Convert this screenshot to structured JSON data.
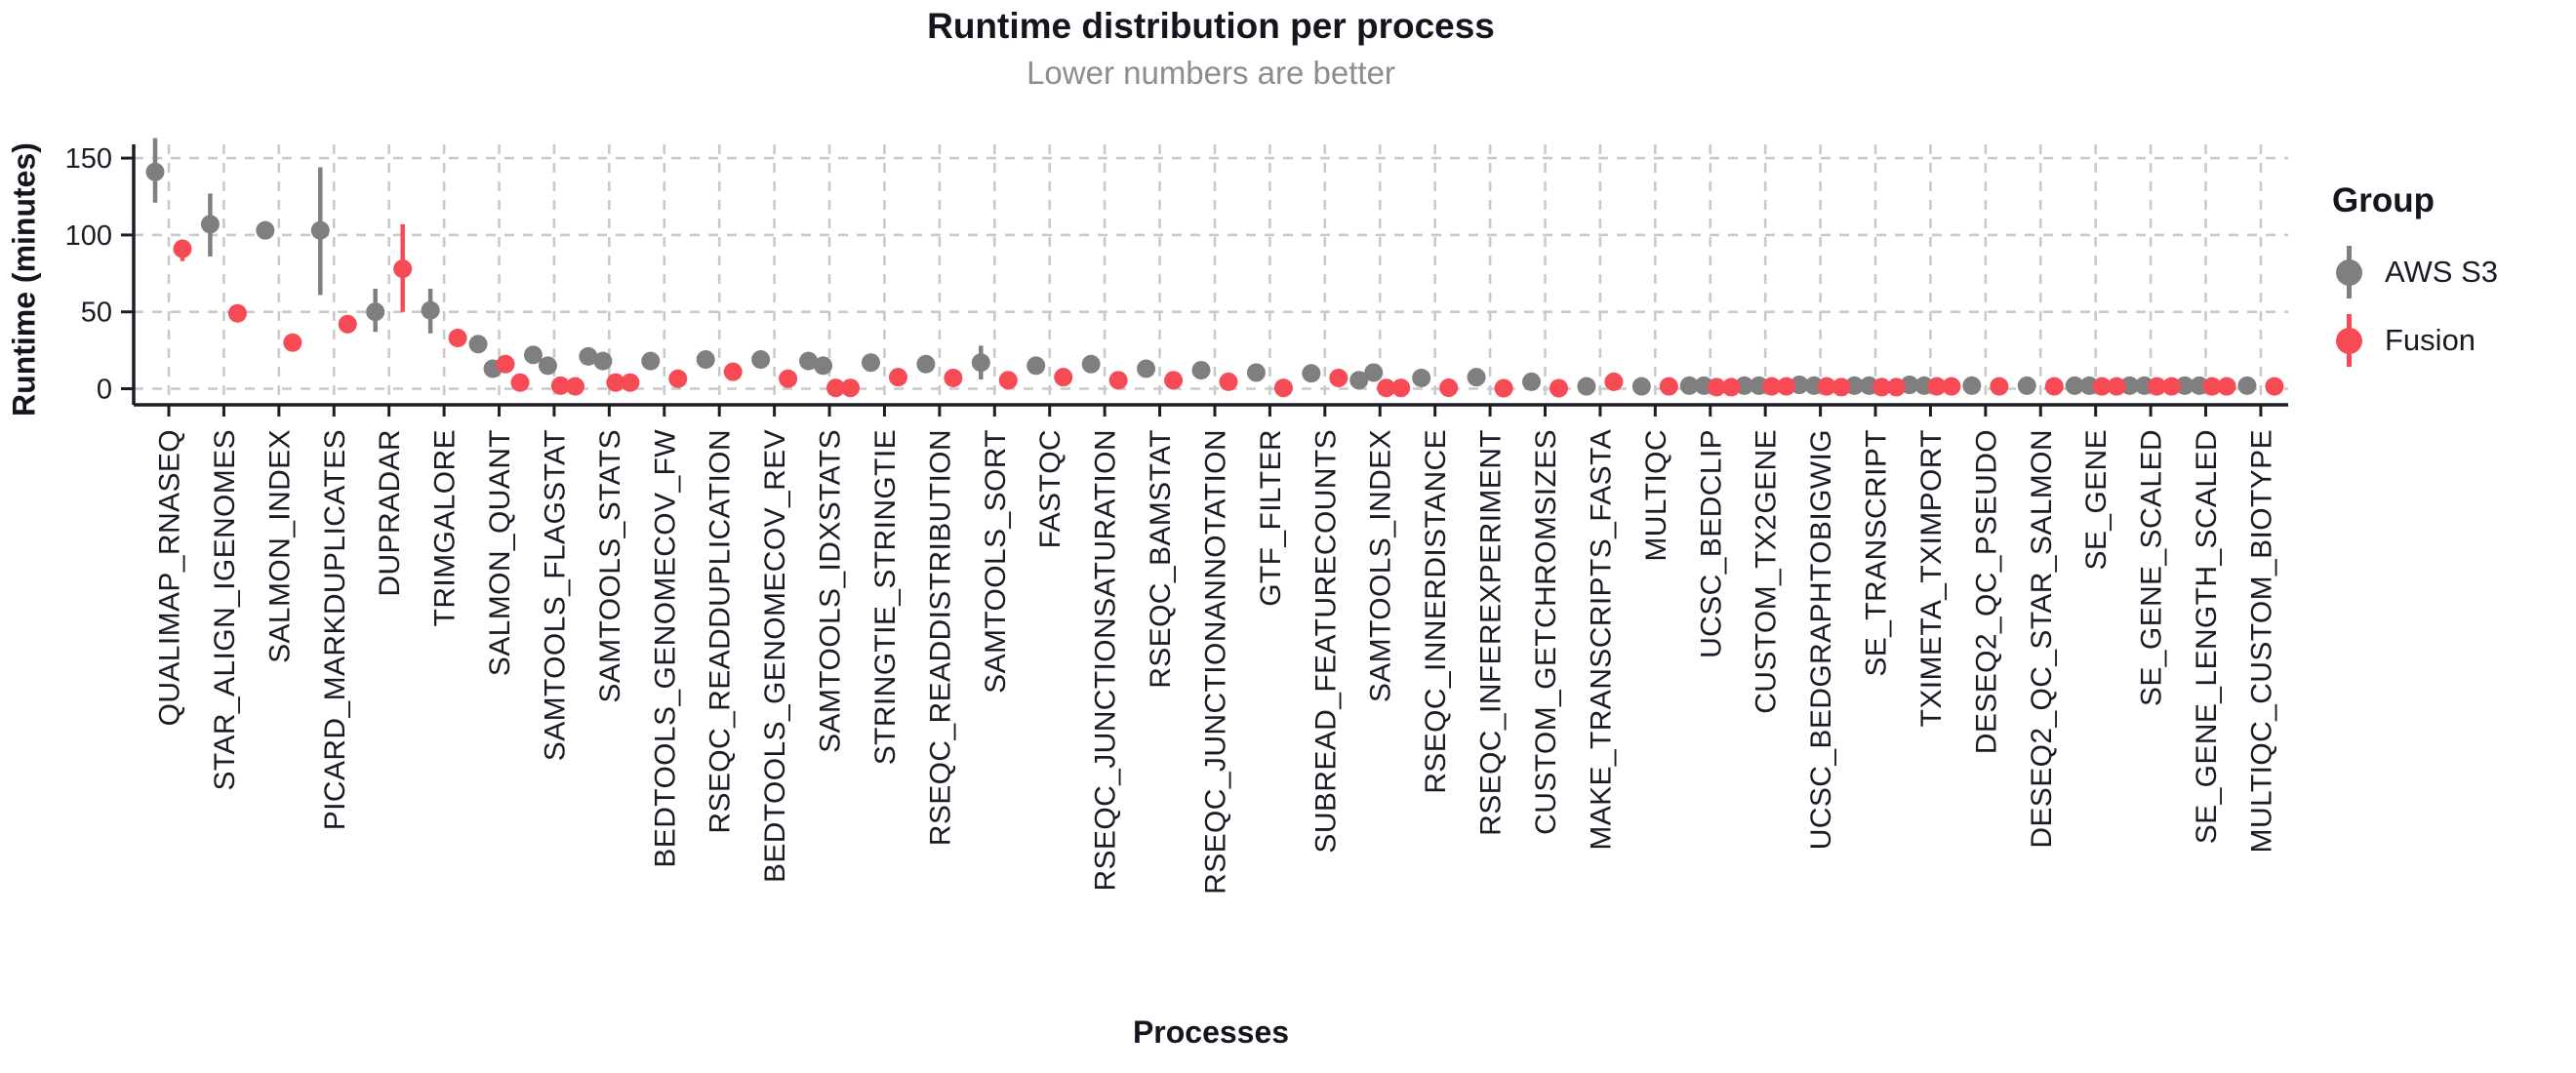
{
  "chart_data": {
    "type": "pointrange",
    "title": "Runtime distribution per process",
    "subtitle": "Lower numbers are better",
    "xlabel": "Processes",
    "ylabel": "Runtime (minutes)",
    "yticks": [
      0,
      50,
      100,
      150
    ],
    "ylim": [
      0,
      168
    ],
    "grid": "dashed",
    "legend_position": "right",
    "legend_title": "Group",
    "categories": [
      "QUALIMAP_RNASEQ",
      "STAR_ALIGN_IGENOMES",
      "SALMON_INDEX",
      "PICARD_MARKDUPLICATES",
      "DUPRADAR",
      "TRIMGALORE",
      "SALMON_QUANT",
      "SAMTOOLS_FLAGSTAT",
      "SAMTOOLS_STATS",
      "BEDTOOLS_GENOMECOV_FW",
      "RSEQC_READDUPLICATION",
      "BEDTOOLS_GENOMECOV_REV",
      "SAMTOOLS_IDXSTATS",
      "STRINGTIE_STRINGTIE",
      "RSEQC_READDISTRIBUTION",
      "SAMTOOLS_SORT",
      "FASTQC",
      "RSEQC_JUNCTIONSATURATION",
      "RSEQC_BAMSTAT",
      "RSEQC_JUNCTIONANNOTATION",
      "GTF_FILTER",
      "SUBREAD_FEATURECOUNTS",
      "SAMTOOLS_INDEX",
      "RSEQC_INNERDISTANCE",
      "RSEQC_INFEREXPERIMENT",
      "CUSTOM_GETCHROMSIZES",
      "MAKE_TRANSCRIPTS_FASTA",
      "MULTIQC",
      "UCSC_BEDCLIP",
      "CUSTOM_TX2GENE",
      "UCSC_BEDGRAPHTOBIGWIG",
      "SE_TRANSCRIPT",
      "TXIMETA_TXIMPORT",
      "DESEQ2_QC_PSEUDO",
      "DESEQ2_QC_STAR_SALMON",
      "SE_GENE",
      "SE_GENE_SCALED",
      "SE_GENE_LENGTH_SCALED",
      "MULTIQC_CUSTOM_BIOTYPE"
    ],
    "series": [
      {
        "name": "AWS S3",
        "color": "#7f7f7f",
        "data": [
          {
            "points": [
              141
            ],
            "range": [
              121,
              163
            ]
          },
          {
            "points": [
              107
            ],
            "range": [
              86,
              127
            ]
          },
          {
            "points": [
              103
            ]
          },
          {
            "points": [
              103
            ],
            "range": [
              61,
              144
            ]
          },
          {
            "points": [
              50
            ],
            "range": [
              37,
              65
            ]
          },
          {
            "points": [
              51
            ],
            "range": [
              36,
              65
            ]
          },
          {
            "points": [
              29,
              13
            ]
          },
          {
            "points": [
              22,
              15
            ]
          },
          {
            "points": [
              21,
              18
            ]
          },
          {
            "points": [
              18
            ]
          },
          {
            "points": [
              19
            ]
          },
          {
            "points": [
              19
            ]
          },
          {
            "points": [
              18,
              15
            ]
          },
          {
            "points": [
              17
            ]
          },
          {
            "points": [
              16
            ]
          },
          {
            "points": [
              17
            ],
            "range": [
              6,
              28
            ]
          },
          {
            "points": [
              15
            ]
          },
          {
            "points": [
              16
            ]
          },
          {
            "points": [
              13
            ]
          },
          {
            "points": [
              12
            ]
          },
          {
            "points": [
              10.5
            ]
          },
          {
            "points": [
              10
            ]
          },
          {
            "points": [
              5.5,
              10.5
            ]
          },
          {
            "points": [
              7
            ]
          },
          {
            "points": [
              7.5
            ]
          },
          {
            "points": [
              4.5
            ]
          },
          {
            "points": [
              1.5
            ]
          },
          {
            "points": [
              1.5
            ]
          },
          {
            "points": [
              2,
              2
            ]
          },
          {
            "points": [
              2,
              2
            ]
          },
          {
            "points": [
              2.5,
              2
            ]
          },
          {
            "points": [
              2,
              2
            ]
          },
          {
            "points": [
              2.5,
              2
            ]
          },
          {
            "points": [
              2
            ]
          },
          {
            "points": [
              2
            ]
          },
          {
            "points": [
              2,
              2
            ]
          },
          {
            "points": [
              2,
              2
            ]
          },
          {
            "points": [
              2,
              2
            ]
          },
          {
            "points": [
              2
            ]
          }
        ]
      },
      {
        "name": "Fusion",
        "color": "#f64a55",
        "data": [
          {
            "points": [
              91
            ],
            "range": [
              83,
              97
            ]
          },
          {
            "points": [
              49
            ]
          },
          {
            "points": [
              30
            ]
          },
          {
            "points": [
              42
            ]
          },
          {
            "points": [
              78
            ],
            "range": [
              50,
              107
            ]
          },
          {
            "points": [
              33
            ]
          },
          {
            "points": [
              16,
              4
            ]
          },
          {
            "points": [
              2,
              1.5
            ]
          },
          {
            "points": [
              4,
              4
            ]
          },
          {
            "points": [
              6.5
            ]
          },
          {
            "points": [
              11
            ]
          },
          {
            "points": [
              6.5
            ]
          },
          {
            "points": [
              0.5,
              0.5
            ]
          },
          {
            "points": [
              7.5
            ]
          },
          {
            "points": [
              7
            ]
          },
          {
            "points": [
              5.5
            ]
          },
          {
            "points": [
              7.5
            ]
          },
          {
            "points": [
              5.5
            ]
          },
          {
            "points": [
              5.5
            ]
          },
          {
            "points": [
              4.5
            ]
          },
          {
            "points": [
              0.5
            ]
          },
          {
            "points": [
              7
            ]
          },
          {
            "points": [
              0.5,
              0.5
            ]
          },
          {
            "points": [
              0.6
            ]
          },
          {
            "points": [
              0.3
            ]
          },
          {
            "points": [
              0.3
            ]
          },
          {
            "points": [
              4.5
            ]
          },
          {
            "points": [
              1.5
            ]
          },
          {
            "points": [
              1,
              1
            ]
          },
          {
            "points": [
              1.5,
              1.5
            ]
          },
          {
            "points": [
              1.5,
              1
            ]
          },
          {
            "points": [
              1,
              1
            ]
          },
          {
            "points": [
              1.5,
              1.5
            ]
          },
          {
            "points": [
              1.5
            ]
          },
          {
            "points": [
              1.5
            ]
          },
          {
            "points": [
              1.5,
              1.5
            ]
          },
          {
            "points": [
              1.5,
              1.5
            ]
          },
          {
            "points": [
              1.5,
              1.5
            ]
          },
          {
            "points": [
              1.5
            ]
          }
        ]
      }
    ],
    "colors": {
      "aws_s3": "#7f7f7f",
      "fusion": "#f64a55",
      "grid": "#c9c9c9",
      "axis": "#1c1c26",
      "text": "#1b1b26",
      "subtitle": "#8d8d8d"
    }
  }
}
